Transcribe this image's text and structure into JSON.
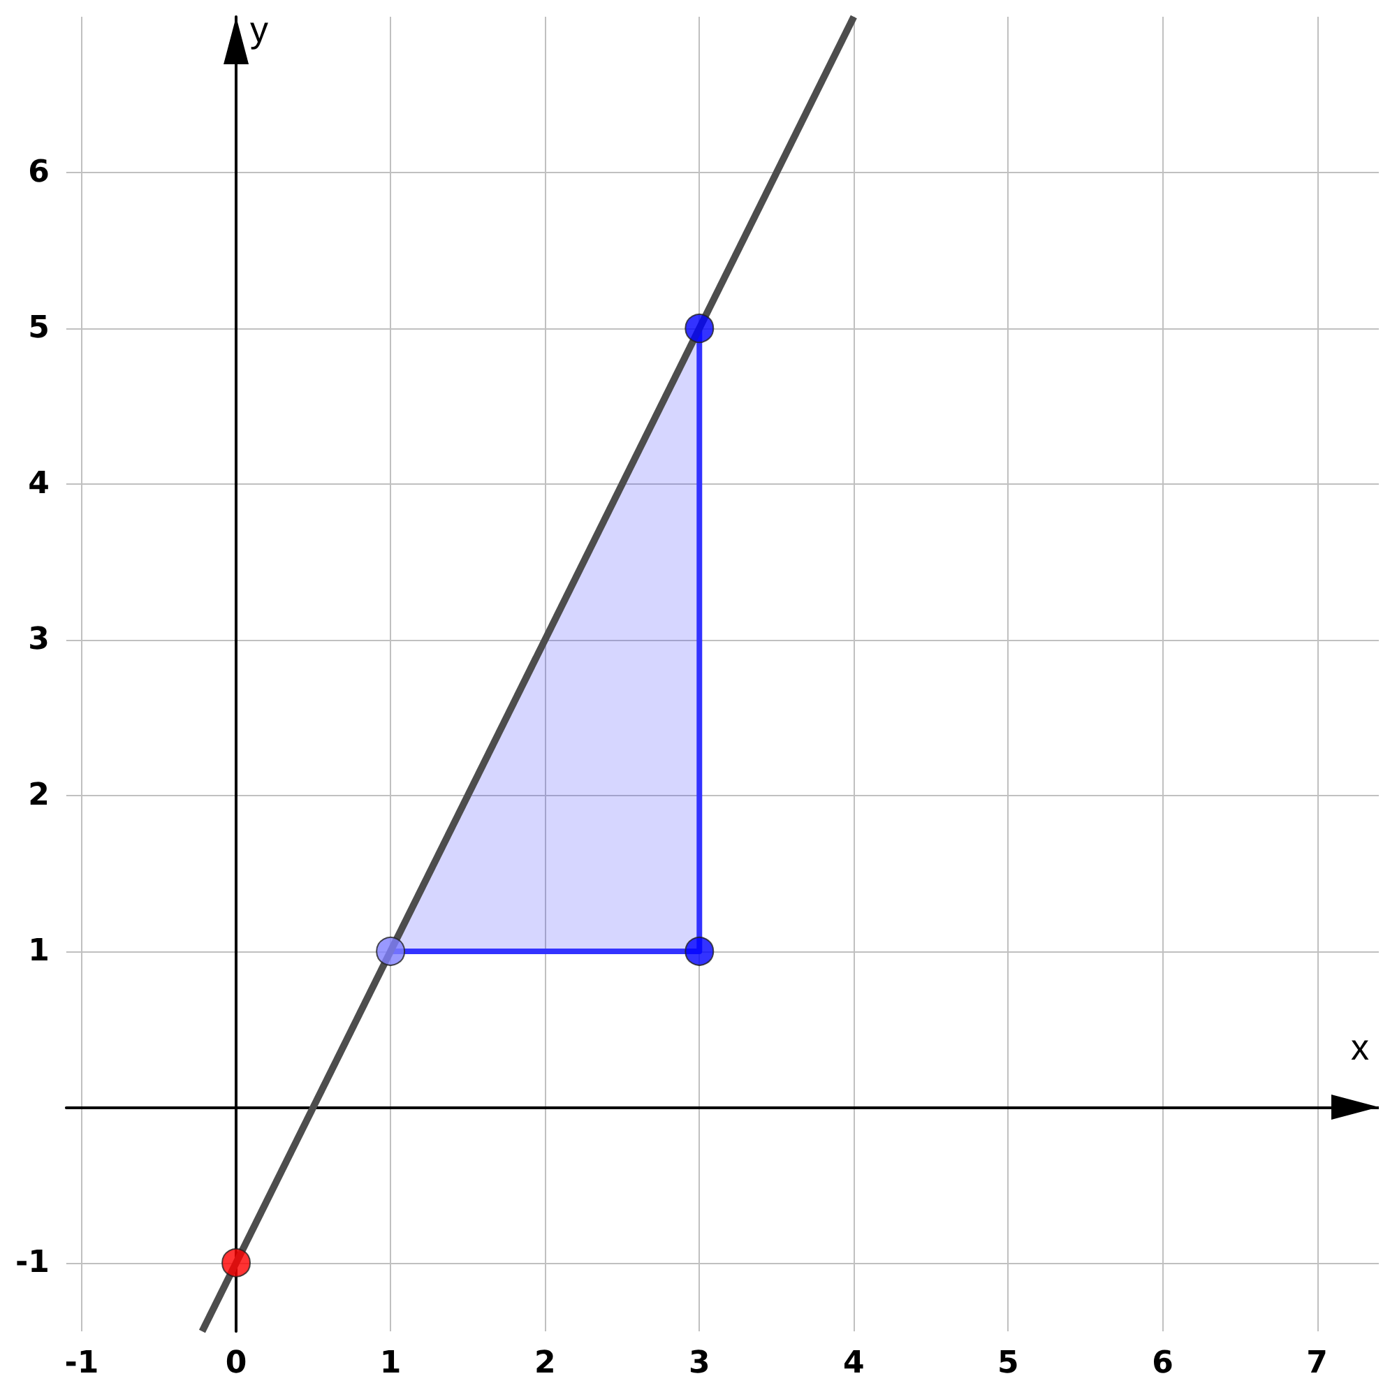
{
  "chart_data": {
    "type": "line",
    "xlabel": "x",
    "ylabel": "y",
    "xlim": [
      -1.1,
      7.4
    ],
    "ylim": [
      -1.44,
      7
    ],
    "xticks": [
      -1,
      0,
      1,
      2,
      3,
      4,
      5,
      6,
      7
    ],
    "yticks": [
      -1,
      1,
      2,
      3,
      4,
      5,
      6
    ],
    "grid": true,
    "series": [
      {
        "color": "#4d4d4d",
        "marker": "none",
        "x": [
          -0.22,
          4
        ],
        "values": [
          -1.44,
          7
        ]
      },
      {
        "type": "area",
        "marker": "none",
        "color": "#3333ff",
        "x": [
          1,
          3,
          3
        ],
        "values": [
          1,
          5,
          1
        ]
      },
      {
        "type": "scatter",
        "marker": "circle",
        "colors": [
          "#ff0000",
          "#8080ff",
          "#0000ff",
          "#0000ff"
        ],
        "x": [
          0,
          1,
          3,
          3
        ],
        "values": [
          -1,
          1,
          5,
          1
        ]
      }
    ]
  }
}
